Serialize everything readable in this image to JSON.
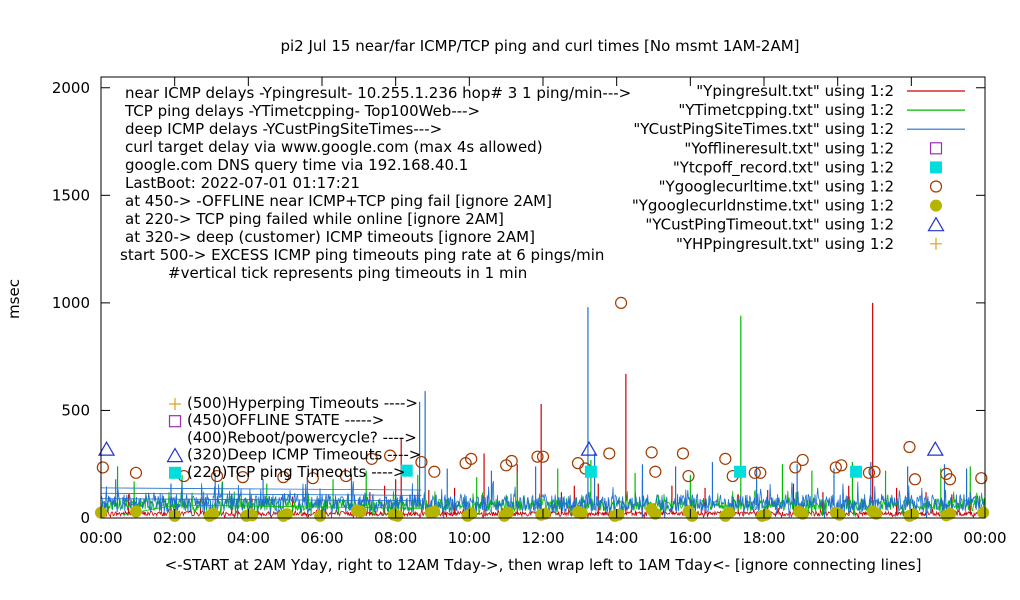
{
  "chart_data": {
    "type": "line",
    "title": "pi2 Jul 15  near/far ICMP/TCP ping and curl times [No msmt 1AM-2AM]",
    "xlabel": "<-START at 2AM Yday, right to 12AM Tday->, then wrap left to 1AM Tday<- [ignore connecting lines]",
    "ylabel": "msec",
    "xlim": [
      0,
      24
    ],
    "ylim": [
      0,
      2050
    ],
    "x_ticks": [
      "00:00",
      "02:00",
      "04:00",
      "06:00",
      "08:00",
      "10:00",
      "12:00",
      "14:00",
      "16:00",
      "18:00",
      "20:00",
      "22:00",
      "00:00"
    ],
    "y_ticks": [
      0,
      500,
      1000,
      1500,
      2000
    ],
    "y_tick_labels": [
      "0",
      "500",
      "1000",
      "1500",
      "2000"
    ],
    "grid": false,
    "legend_position": "top-right",
    "colors": {
      "icmp_near": "#cc0000",
      "tcp": "#00bb00",
      "deep_icmp": "#1f6fd0",
      "offline": "#9b2fb0",
      "tcp_fail": "#00dddd",
      "curl": "#a03a00",
      "dns": "#b5b500",
      "deep_timeout": "#2233cc",
      "hyperping": "#e0a020",
      "annot": "#2233cc"
    },
    "legend": [
      {
        "label": "\"Ypingresult.txt\" using 1:2",
        "style": "line",
        "color_key": "icmp_near"
      },
      {
        "label": "\"YTimetcpping.txt\" using 1:2",
        "style": "line",
        "color_key": "tcp"
      },
      {
        "label": "\"YCustPingSiteTimes.txt\" using 1:2",
        "style": "line",
        "color_key": "deep_icmp"
      },
      {
        "label": "\"Yofflineresult.txt\" using 1:2",
        "style": "open-square",
        "color_key": "offline"
      },
      {
        "label": "\"Ytcpoff_record.txt\" using 1:2",
        "style": "filled-square",
        "color_key": "tcp_fail"
      },
      {
        "label": "\"Ygooglecurltime.txt\" using 1:2",
        "style": "open-circle",
        "color_key": "curl"
      },
      {
        "label": "\"Ygooglecurldnstime.txt\" using 1:2",
        "style": "filled-circle",
        "color_key": "dns"
      },
      {
        "label": "\"YCustPingTimeout.txt\" using 1:2",
        "style": "open-triangle",
        "color_key": "deep_timeout"
      },
      {
        "label": "\"YHPpingresult.txt\" using 1:2",
        "style": "plus",
        "color_key": "hyperping"
      }
    ],
    "notes": [
      "near ICMP delays -Ypingresult- 10.255.1.236 hop# 3 1 ping/min--->",
      "TCP ping delays -YTimetcpping- Top100Web--->",
      "deep ICMP delays -YCustPingSiteTimes--->",
      "curl target delay via www.google.com (max 4s allowed)",
      "google.com DNS query time via 192.168.40.1",
      "LastBoot: 2022-07-01 01:17:21",
      "at 450-> -OFFLINE near ICMP+TCP ping fail [ignore 2AM]",
      "at 220-> TCP ping failed while online [ignore 2AM]",
      "at 320-> deep (customer) ICMP timeouts [ignore 2AM]",
      "start 500-> EXCESS ICMP ping timeouts ping rate at 6 pings/min",
      "#vertical tick represents ping timeouts in 1 min"
    ],
    "inner_legend": [
      {
        "label": "(500)Hyperping Timeouts ---->",
        "style": "plus",
        "color_key": "hyperping"
      },
      {
        "label": "(450)OFFLINE STATE ----->",
        "style": "open-square",
        "color_key": "offline"
      },
      {
        "label": "(400)Reboot/powercycle? ---->",
        "style": "none",
        "color_key": "annot"
      },
      {
        "label": "(320)Deep ICMP Timeouts ---->",
        "style": "open-triangle",
        "color_key": "deep_timeout"
      },
      {
        "label": "(220)TCP ping Timeouts ---->",
        "style": "filled-square",
        "color_key": "tcp_fail"
      }
    ],
    "series": [
      {
        "name": "\"Ypingresult.txt\" using 1:2",
        "kind": "line",
        "color_key": "icmp_near",
        "base": 18,
        "noise": 22,
        "spikes": [
          [
            0.75,
            110
          ],
          [
            1.9,
            60
          ],
          [
            2.7,
            90
          ],
          [
            3.55,
            110
          ],
          [
            4.1,
            90
          ],
          [
            5.2,
            100
          ],
          [
            6.1,
            80
          ],
          [
            7.3,
            120
          ],
          [
            7.7,
            150
          ],
          [
            8.0,
            180
          ],
          [
            8.15,
            370
          ],
          [
            8.9,
            130
          ],
          [
            9.6,
            140
          ],
          [
            10.4,
            300
          ],
          [
            11.3,
            250
          ],
          [
            11.95,
            530
          ],
          [
            12.5,
            120
          ],
          [
            12.85,
            150
          ],
          [
            13.5,
            160
          ],
          [
            14.25,
            670
          ],
          [
            14.7,
            180
          ],
          [
            15.5,
            150
          ],
          [
            16.4,
            140
          ],
          [
            17.3,
            110
          ],
          [
            18.1,
            130
          ],
          [
            18.8,
            160
          ],
          [
            19.6,
            120
          ],
          [
            20.3,
            150
          ],
          [
            20.95,
            1000
          ],
          [
            21.6,
            140
          ],
          [
            22.4,
            120
          ],
          [
            23.1,
            110
          ],
          [
            23.6,
            120
          ]
        ]
      },
      {
        "name": "\"YTimetcpping.txt\" using 1:2",
        "kind": "line",
        "color_key": "tcp",
        "base": 55,
        "noise": 55,
        "spikes": [
          [
            0.45,
            240
          ],
          [
            0.9,
            170
          ],
          [
            2.2,
            200
          ],
          [
            3.3,
            170
          ],
          [
            4.5,
            160
          ],
          [
            6.3,
            180
          ],
          [
            7.2,
            220
          ],
          [
            8.6,
            200
          ],
          [
            10.2,
            190
          ],
          [
            11.3,
            210
          ],
          [
            12.4,
            230
          ],
          [
            13.3,
            270
          ],
          [
            14.5,
            210
          ],
          [
            16.0,
            200
          ],
          [
            17.37,
            940
          ],
          [
            18.5,
            250
          ],
          [
            19.3,
            220
          ],
          [
            20.4,
            260
          ],
          [
            21.3,
            220
          ],
          [
            22.8,
            230
          ],
          [
            23.6,
            240
          ]
        ]
      },
      {
        "name": "\"YCustPingSiteTimes.txt\" using 1:2",
        "kind": "line",
        "color_key": "deep_icmp",
        "base": 60,
        "noise": 85,
        "spikes": [
          [
            0.4,
            180
          ],
          [
            1.9,
            160
          ],
          [
            3.1,
            210
          ],
          [
            4.4,
            180
          ],
          [
            5.6,
            190
          ],
          [
            6.8,
            200
          ],
          [
            8.65,
            540
          ],
          [
            8.8,
            590
          ],
          [
            9.4,
            230
          ],
          [
            10.6,
            220
          ],
          [
            11.8,
            240
          ],
          [
            13.22,
            980
          ],
          [
            13.4,
            300
          ],
          [
            14.7,
            250
          ],
          [
            15.6,
            240
          ],
          [
            16.6,
            260
          ],
          [
            17.8,
            240
          ],
          [
            18.9,
            250
          ],
          [
            19.9,
            230
          ],
          [
            20.9,
            260
          ],
          [
            21.9,
            240
          ],
          [
            22.9,
            250
          ],
          [
            23.5,
            230
          ]
        ]
      },
      {
        "name": "\"Ygooglecurltime.txt\" using 1:2",
        "kind": "open-circle",
        "color_key": "curl",
        "points": [
          [
            0.05,
            235
          ],
          [
            0.95,
            210
          ],
          [
            2.25,
            195
          ],
          [
            3.15,
            195
          ],
          [
            3.85,
            190
          ],
          [
            4.95,
            190
          ],
          [
            5.75,
            185
          ],
          [
            6.65,
            195
          ],
          [
            7.35,
            275
          ],
          [
            7.85,
            290
          ],
          [
            8.7,
            260
          ],
          [
            9.05,
            215
          ],
          [
            9.9,
            255
          ],
          [
            10.05,
            275
          ],
          [
            11.0,
            245
          ],
          [
            11.15,
            265
          ],
          [
            11.85,
            285
          ],
          [
            12.0,
            285
          ],
          [
            12.95,
            255
          ],
          [
            13.15,
            230
          ],
          [
            13.8,
            300
          ],
          [
            14.12,
            1000
          ],
          [
            14.95,
            305
          ],
          [
            15.05,
            215
          ],
          [
            15.8,
            300
          ],
          [
            15.95,
            195
          ],
          [
            16.95,
            275
          ],
          [
            17.15,
            195
          ],
          [
            17.75,
            210
          ],
          [
            17.9,
            210
          ],
          [
            18.85,
            235
          ],
          [
            19.05,
            270
          ],
          [
            19.95,
            235
          ],
          [
            20.1,
            245
          ],
          [
            20.85,
            210
          ],
          [
            21.0,
            215
          ],
          [
            21.95,
            330
          ],
          [
            22.1,
            180
          ],
          [
            22.95,
            205
          ],
          [
            23.05,
            180
          ],
          [
            23.9,
            185
          ]
        ]
      },
      {
        "name": "\"Ygooglecurldnstime.txt\" using 1:2",
        "kind": "filled-circle",
        "color_key": "dns",
        "points": [
          [
            0.0,
            25
          ],
          [
            0.95,
            30
          ],
          [
            2.0,
            10
          ],
          [
            2.95,
            10
          ],
          [
            3.05,
            20
          ],
          [
            3.95,
            10
          ],
          [
            4.1,
            12
          ],
          [
            4.95,
            10
          ],
          [
            5.05,
            18
          ],
          [
            5.95,
            10
          ],
          [
            6.95,
            35
          ],
          [
            7.05,
            30
          ],
          [
            7.95,
            15
          ],
          [
            8.05,
            10
          ],
          [
            8.95,
            25
          ],
          [
            9.05,
            30
          ],
          [
            9.95,
            10
          ],
          [
            10.05,
            20
          ],
          [
            10.95,
            10
          ],
          [
            11.05,
            25
          ],
          [
            11.95,
            15
          ],
          [
            12.05,
            20
          ],
          [
            12.95,
            28
          ],
          [
            13.05,
            22
          ],
          [
            13.95,
            10
          ],
          [
            14.05,
            15
          ],
          [
            14.95,
            40
          ],
          [
            15.05,
            20
          ],
          [
            15.95,
            30
          ],
          [
            16.05,
            10
          ],
          [
            16.95,
            10
          ],
          [
            17.05,
            25
          ],
          [
            17.95,
            10
          ],
          [
            18.05,
            15
          ],
          [
            18.95,
            30
          ],
          [
            19.05,
            20
          ],
          [
            19.95,
            25
          ],
          [
            20.05,
            15
          ],
          [
            20.95,
            30
          ],
          [
            21.05,
            20
          ],
          [
            21.95,
            10
          ],
          [
            22.05,
            18
          ],
          [
            22.95,
            12
          ],
          [
            23.05,
            20
          ],
          [
            23.95,
            25
          ]
        ]
      },
      {
        "name": "\"Ytcpoff_record.txt\" using 1:2",
        "kind": "filled-square",
        "color_key": "tcp_fail",
        "points": [
          [
            8.3,
            220
          ],
          [
            13.3,
            215
          ],
          [
            17.35,
            215
          ],
          [
            20.5,
            215
          ]
        ]
      },
      {
        "name": "\"YCustPingTimeout.txt\" using 1:2",
        "kind": "open-triangle",
        "color_key": "deep_timeout",
        "points": [
          [
            0.15,
            320
          ],
          [
            13.25,
            320
          ],
          [
            22.65,
            320
          ]
        ]
      }
    ]
  }
}
